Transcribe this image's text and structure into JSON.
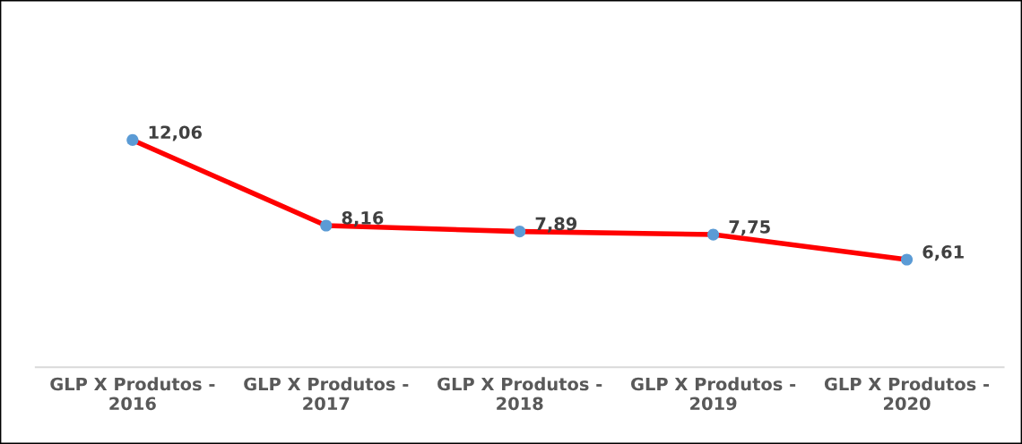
{
  "chart_data": {
    "type": "line",
    "categories": [
      "GLP X Produtos -\n2016",
      "GLP X Produtos -\n2017",
      "GLP X Produtos -\n2018",
      "GLP X Produtos -\n2019",
      "GLP X Produtos -\n2020"
    ],
    "series": [
      {
        "color": "#ff0000",
        "colors": [
          "#5b9bd5",
          "#5b9bd5",
          "#5b9bd5",
          "#5b9bd5",
          "#5b9bd5"
        ],
        "values": [
          12.06,
          8.16,
          7.89,
          7.75,
          6.61
        ],
        "value_labels": [
          "12,06",
          "8,16",
          "7,89",
          "7,75",
          "6,61"
        ]
      }
    ],
    "marker": "circle",
    "tick_labels": "x"
  }
}
